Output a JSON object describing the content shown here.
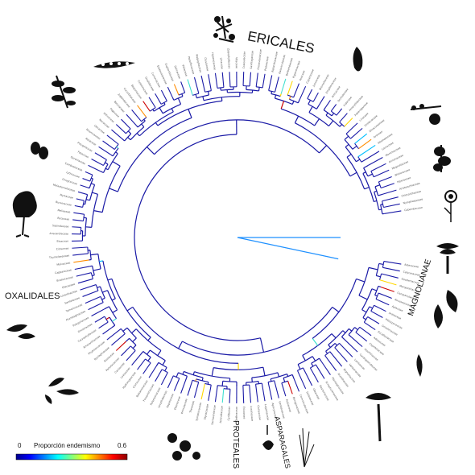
{
  "clades": {
    "ericales": "ERICALES",
    "oxalidales": "OXALIDALES",
    "magnolianae": "MAGNOLIANAE",
    "proteales": "PROTEALES",
    "asparagales": "ASPARAGALES"
  },
  "legend": {
    "min": "0",
    "title": "Proporción endemismo",
    "max": "0.6",
    "colors": [
      "#00008b",
      "#0000ff",
      "#0080ff",
      "#00ffff",
      "#80ff80",
      "#ffff00",
      "#ff8000",
      "#ff0000",
      "#8b0000"
    ]
  },
  "tree": {
    "branch_color_default": "#1a1aa6",
    "highlight_colors": [
      "#00bfff",
      "#40e0d0",
      "#ffd700",
      "#ff8c00",
      "#cc0000"
    ]
  },
  "leaf_names": [
    "Asteraceae",
    "Calyceraceae",
    "Goodeniaceae",
    "Menyanthaceae",
    "Campanulaceae",
    "Rousseaceae",
    "Apiaceae",
    "Araliaceae",
    "Pittosporaceae",
    "Griseliniaceae",
    "Escalloniaceae",
    "Adoxaceae",
    "Caprifoliaceae",
    "Aquifoliaceae",
    "Cardiopteridaceae",
    "Lamiaceae",
    "Verbenaceae",
    "Bignoniaceae",
    "Acanthaceae",
    "Plantaginaceae",
    "Scrophulariaceae",
    "Gesneriaceae",
    "Oleaceae",
    "Solanaceae",
    "Convolvulaceae",
    "Boraginaceae",
    "Rubiaceae",
    "Gentianaceae",
    "Apocynaceae",
    "Loganiaceae",
    "Garryaceae",
    "Icacinaceae",
    "Ericaceae",
    "Clethraceae",
    "Cyrillaceae",
    "Actinidiaceae",
    "Sarraceniaceae",
    "Styracaceae",
    "Symplocaceae",
    "Theaceae",
    "Primulaceae",
    "Ebenaceae",
    "Sapotaceae",
    "Lecythidaceae",
    "Polemoniaceae",
    "Fouquieriaceae",
    "Balsaminaceae",
    "Cornaceae",
    "Hydrangeaceae",
    "Loasaceae",
    "Cactaceae",
    "Portulacaceae",
    "Aizoaceae",
    "Nyctaginaceae",
    "Phytolaccaceae",
    "Amaranthaceae",
    "Caryophyllaceae",
    "Droseraceae",
    "Polygonaceae",
    "Plumbaginaceae",
    "Tamaricaceae",
    "Santalaceae",
    "Loranthaceae",
    "Olacaceae",
    "Brassicaceae",
    "Capparaceae",
    "Malvaceae",
    "Thymelaeaceae",
    "Cistaceae",
    "Bixaceae",
    "Anacardiaceae",
    "Sapindaceae",
    "Rutaceae",
    "Meliaceae",
    "Burseraceae",
    "Myrtaceae",
    "Melastomataceae",
    "Onagraceae",
    "Lythraceae",
    "Combretaceae",
    "Geraniaceae",
    "Fabaceae",
    "Polygalaceae",
    "Rosaceae",
    "Rhamnaceae",
    "Ulmaceae",
    "Moraceae",
    "Urticaceae",
    "Fagaceae",
    "Betulaceae",
    "Juglandaceae",
    "Cucurbitaceae",
    "Begoniaceae",
    "Celastraceae",
    "Oxalidaceae",
    "Cunoniaceae",
    "Elaeocarpaceae",
    "Euphorbiaceae",
    "Salicaceae",
    "Violaceae",
    "Passifloraceae",
    "Malpighiaceae",
    "Clusiaceae",
    "Hypericaceae",
    "Linaceae",
    "Zygophyllaceae",
    "Vitaceae",
    "Crassulaceae",
    "Saxifragaceae",
    "Grossulariaceae",
    "Proteaceae",
    "Nelumbonaceae",
    "Ranunculaceae",
    "Berberidaceae",
    "Papaveraceae",
    "Poaceae",
    "Cyperaceae",
    "Juncaceae",
    "Bromeliaceae",
    "Zingiberaceae",
    "Arecaceae",
    "Orchidaceae",
    "Iridaceae",
    "Amaryllidaceae",
    "Asparagaceae",
    "Liliaceae",
    "Smilacaceae",
    "Dioscoreaceae",
    "Araceae",
    "Alismataceae",
    "Lauraceae",
    "Monimiaceae",
    "Annonaceae",
    "Magnoliaceae",
    "Winteraceae",
    "Piperaceae",
    "Aristolochiaceae",
    "Chloranthaceae",
    "Nymphaeaceae",
    "Cabombaceae"
  ]
}
